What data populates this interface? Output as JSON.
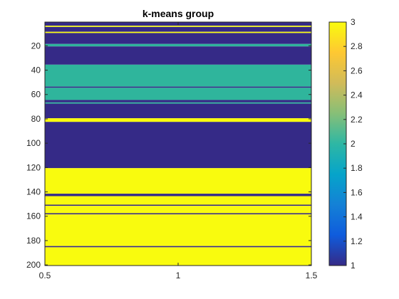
{
  "chart_data": {
    "type": "heatmap",
    "title": "k-means group",
    "xlabel": "",
    "ylabel": "",
    "xlim": [
      0.5,
      1.5
    ],
    "ylim": [
      200.5,
      0.5
    ],
    "x_ticks": [
      0.5,
      1,
      1.5
    ],
    "x_tick_labels": [
      "0.5",
      "1",
      "1.5"
    ],
    "y_ticks": [
      20,
      40,
      60,
      80,
      100,
      120,
      140,
      160,
      180,
      200
    ],
    "y_tick_labels": [
      "20",
      "40",
      "60",
      "80",
      "100",
      "120",
      "140",
      "160",
      "180",
      "200"
    ],
    "rows": 200,
    "columns": [
      1
    ],
    "segments": [
      {
        "start": 1,
        "end": 3,
        "group": 1
      },
      {
        "start": 4,
        "end": 4,
        "group": 3
      },
      {
        "start": 5,
        "end": 8,
        "group": 1
      },
      {
        "start": 9,
        "end": 9,
        "group": 3
      },
      {
        "start": 10,
        "end": 18,
        "group": 1
      },
      {
        "start": 19,
        "end": 20,
        "group": 2
      },
      {
        "start": 21,
        "end": 35,
        "group": 1
      },
      {
        "start": 36,
        "end": 53,
        "group": 2
      },
      {
        "start": 54,
        "end": 54,
        "group": 1
      },
      {
        "start": 55,
        "end": 64,
        "group": 2
      },
      {
        "start": 65,
        "end": 66,
        "group": 1
      },
      {
        "start": 67,
        "end": 67,
        "group": 2
      },
      {
        "start": 68,
        "end": 79,
        "group": 1
      },
      {
        "start": 80,
        "end": 82,
        "group": 3
      },
      {
        "start": 83,
        "end": 120,
        "group": 1
      },
      {
        "start": 121,
        "end": 141,
        "group": 3
      },
      {
        "start": 142,
        "end": 143,
        "group": 1
      },
      {
        "start": 144,
        "end": 150,
        "group": 3
      },
      {
        "start": 151,
        "end": 151,
        "group": 1
      },
      {
        "start": 152,
        "end": 157,
        "group": 3
      },
      {
        "start": 158,
        "end": 158,
        "group": 1
      },
      {
        "start": 159,
        "end": 184,
        "group": 3
      },
      {
        "start": 185,
        "end": 185,
        "group": 1
      },
      {
        "start": 186,
        "end": 200,
        "group": 3
      }
    ],
    "colormap": "parula",
    "group_colors": {
      "1": "#352a87",
      "2": "#2fb59c",
      "3": "#f9fb0e"
    },
    "colorbar": {
      "limits": [
        1,
        3
      ],
      "ticks": [
        1,
        1.2,
        1.4,
        1.6,
        1.8,
        2,
        2.2,
        2.4,
        2.6,
        2.8,
        3
      ],
      "tick_labels": [
        "1",
        "1.2",
        "1.4",
        "1.6",
        "1.8",
        "2",
        "2.2",
        "2.4",
        "2.6",
        "2.8",
        "3"
      ],
      "stops": [
        "#352a87",
        "#0f5cdd",
        "#1481d6",
        "#06a4ca",
        "#2eb7a4",
        "#87bf77",
        "#d1bb59",
        "#fec832",
        "#f9fb0e"
      ]
    }
  }
}
